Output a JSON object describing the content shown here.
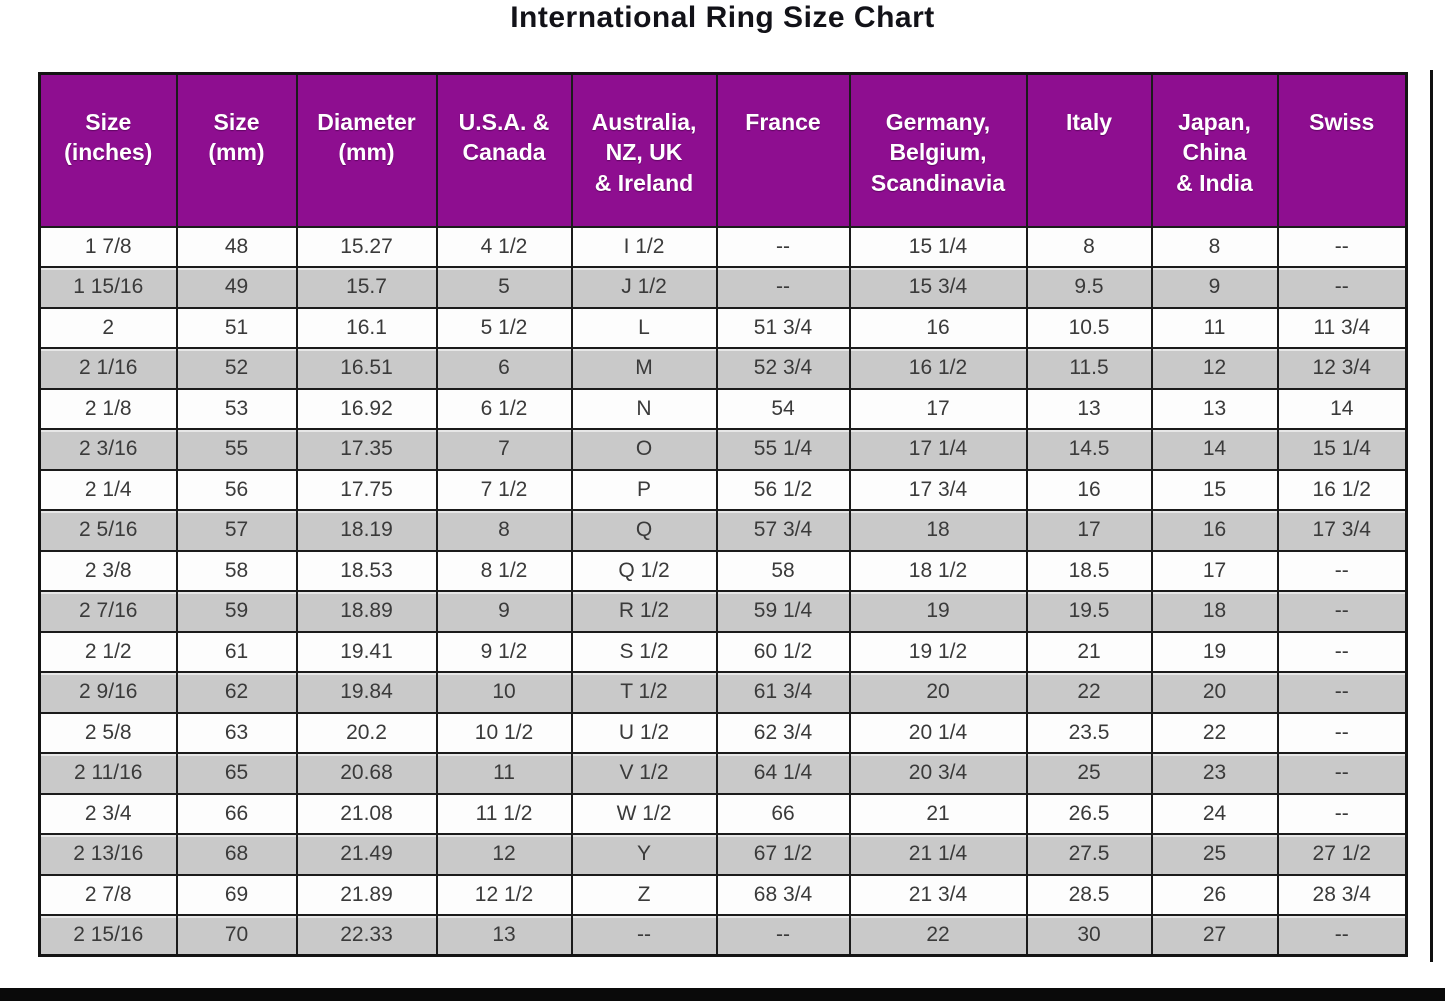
{
  "title": "International Ring Size Chart",
  "colors": {
    "header_bg": "#8E0E90",
    "header_text": "#FFFFFF",
    "row_white": "#FDFDFD",
    "row_gray": "#C9C9C9",
    "cell_text": "#3A3A3A",
    "border": "#1B1B1B"
  },
  "chart_data": {
    "type": "table",
    "title": "International Ring Size Chart",
    "columns": [
      "Size\n(inches)",
      "Size\n(mm)",
      "Diameter\n(mm)",
      "U.S.A. &\nCanada",
      "Australia,\nNZ, UK\n& Ireland",
      "France",
      "Germany,\nBelgium,\nScandinavia",
      "Italy",
      "Japan,\nChina\n& India",
      "Swiss"
    ],
    "rows": [
      [
        "1 7/8",
        "48",
        "15.27",
        "4 1/2",
        "I 1/2",
        "--",
        "15 1/4",
        "8",
        "8",
        "--"
      ],
      [
        "1 15/16",
        "49",
        "15.7",
        "5",
        "J 1/2",
        "--",
        "15 3/4",
        "9.5",
        "9",
        "--"
      ],
      [
        "2",
        "51",
        "16.1",
        "5 1/2",
        "L",
        "51 3/4",
        "16",
        "10.5",
        "11",
        "11 3/4"
      ],
      [
        "2 1/16",
        "52",
        "16.51",
        "6",
        "M",
        "52 3/4",
        "16 1/2",
        "11.5",
        "12",
        "12 3/4"
      ],
      [
        "2 1/8",
        "53",
        "16.92",
        "6 1/2",
        "N",
        "54",
        "17",
        "13",
        "13",
        "14"
      ],
      [
        "2 3/16",
        "55",
        "17.35",
        "7",
        "O",
        "55 1/4",
        "17 1/4",
        "14.5",
        "14",
        "15 1/4"
      ],
      [
        "2 1/4",
        "56",
        "17.75",
        "7 1/2",
        "P",
        "56 1/2",
        "17 3/4",
        "16",
        "15",
        "16 1/2"
      ],
      [
        "2 5/16",
        "57",
        "18.19",
        "8",
        "Q",
        "57 3/4",
        "18",
        "17",
        "16",
        "17 3/4"
      ],
      [
        "2 3/8",
        "58",
        "18.53",
        "8 1/2",
        "Q 1/2",
        "58",
        "18 1/2",
        "18.5",
        "17",
        "--"
      ],
      [
        "2 7/16",
        "59",
        "18.89",
        "9",
        "R 1/2",
        "59 1/4",
        "19",
        "19.5",
        "18",
        "--"
      ],
      [
        "2 1/2",
        "61",
        "19.41",
        "9 1/2",
        "S 1/2",
        "60 1/2",
        "19 1/2",
        "21",
        "19",
        "--"
      ],
      [
        "2 9/16",
        "62",
        "19.84",
        "10",
        "T 1/2",
        "61 3/4",
        "20",
        "22",
        "20",
        "--"
      ],
      [
        "2 5/8",
        "63",
        "20.2",
        "10 1/2",
        "U 1/2",
        "62 3/4",
        "20 1/4",
        "23.5",
        "22",
        "--"
      ],
      [
        "2 11/16",
        "65",
        "20.68",
        "11",
        "V 1/2",
        "64 1/4",
        "20 3/4",
        "25",
        "23",
        "--"
      ],
      [
        "2 3/4",
        "66",
        "21.08",
        "11 1/2",
        "W 1/2",
        "66",
        "21",
        "26.5",
        "24",
        "--"
      ],
      [
        "2 13/16",
        "68",
        "21.49",
        "12",
        "Y",
        "67 1/2",
        "21 1/4",
        "27.5",
        "25",
        "27 1/2"
      ],
      [
        "2 7/8",
        "69",
        "21.89",
        "12 1/2",
        "Z",
        "68 3/4",
        "21 3/4",
        "28.5",
        "26",
        "28 3/4"
      ],
      [
        "2 15/16",
        "70",
        "22.33",
        "13",
        "--",
        "--",
        "22",
        "30",
        "27",
        "--"
      ]
    ],
    "layout": {
      "header_background": "#8E0E90",
      "alternating_rows": true,
      "grid": true
    }
  }
}
